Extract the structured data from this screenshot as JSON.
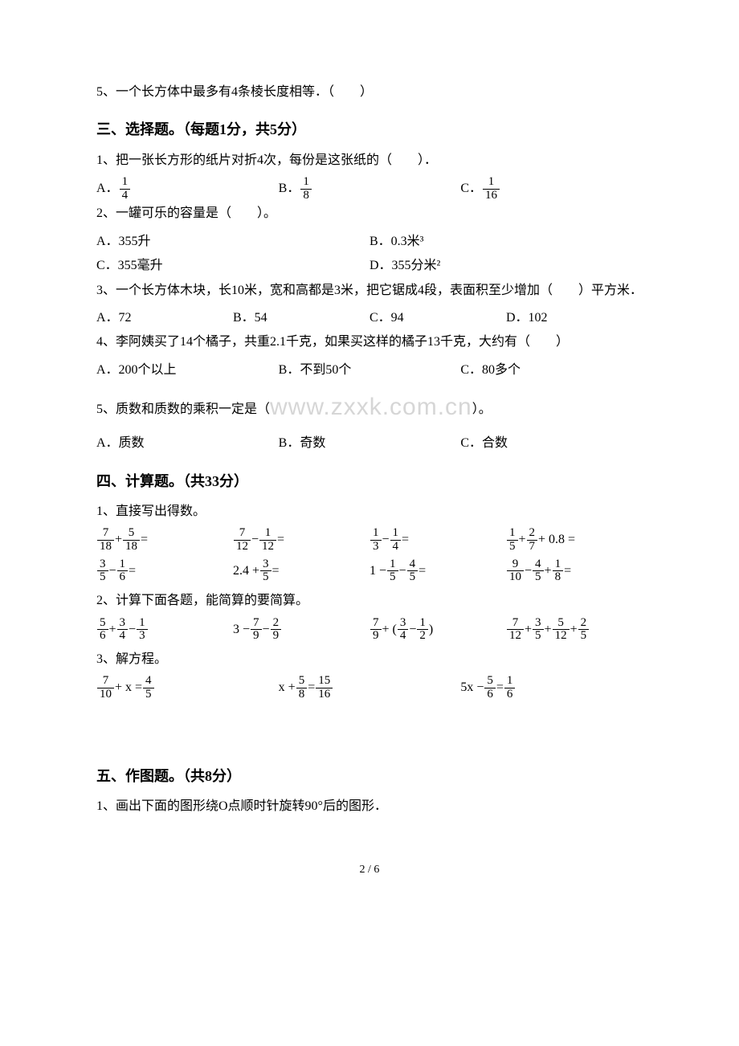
{
  "q2_5": "5、一个长方体中最多有4条棱长度相等．（　　）",
  "sec3_title": "三、选择题。（每题1分，共5分）",
  "s3q1": "1、把一张长方形的纸片对折4次，每份是这张纸的（　　）．",
  "s3q1a_pre": "A．",
  "s3q1a_n": "1",
  "s3q1a_d": "4",
  "s3q1b_pre": "B．",
  "s3q1b_n": "1",
  "s3q1b_d": "8",
  "s3q1c_pre": "C．",
  "s3q1c_n": "1",
  "s3q1c_d": "16",
  "s3q2": "2、一罐可乐的容量是（　　）。",
  "s3q2a": "A．355升",
  "s3q2b": "B．0.3米³",
  "s3q2c": "C．355毫升",
  "s3q2d": "D．355分米²",
  "s3q3": "3、一个长方体木块，长10米，宽和高都是3米，把它锯成4段，表面积至少增加（　　）平方米．",
  "s3q3a": "A．72",
  "s3q3b": "B．54",
  "s3q3c": "C．94",
  "s3q3d": "D．102",
  "s3q4": "4、李阿姨买了14个橘子，共重2.1千克，如果买这样的橘子13千克，大约有（　　）",
  "s3q4a": "A．200个以上",
  "s3q4b": "B．不到50个",
  "s3q4c": "C．80多个",
  "s3q5_pre": "5、质数和质数的乘积一定是（",
  "s3q5_wm": "www.zxxk.com.cn",
  "s3q5_post": "）。",
  "s3q5a": "A．质数",
  "s3q5b": "B．奇数",
  "s3q5c": "C．合数",
  "sec4_title": "四、计算题。（共33分）",
  "s4q1": "1、直接写出得数。",
  "c1a_n1": "7",
  "c1a_d1": "18",
  "c1a_op": "+",
  "c1a_n2": "5",
  "c1a_d2": "18",
  "c1a_eq": "=",
  "c1b_n1": "7",
  "c1b_d1": "12",
  "c1b_op": "−",
  "c1b_n2": "1",
  "c1b_d2": "12",
  "c1b_eq": "=",
  "c1c_n1": "1",
  "c1c_d1": "3",
  "c1c_op": "−",
  "c1c_n2": "1",
  "c1c_d2": "4",
  "c1c_eq": "=",
  "c1d_n1": "1",
  "c1d_d1": "5",
  "c1d_op1": "+",
  "c1d_n2": "2",
  "c1d_d2": "7",
  "c1d_op2": "+ 0.8 =",
  "c2a_n1": "3",
  "c2a_d1": "5",
  "c2a_op": "−",
  "c2a_n2": "1",
  "c2a_d2": "6",
  "c2a_eq": "=",
  "c2b_pre": "2.4 +",
  "c2b_n": "3",
  "c2b_d": "5",
  "c2b_eq": "=",
  "c2c_pre": "1 −",
  "c2c_n1": "1",
  "c2c_d1": "5",
  "c2c_op": "−",
  "c2c_n2": "4",
  "c2c_d2": "5",
  "c2c_eq": "=",
  "c2d_n1": "9",
  "c2d_d1": "10",
  "c2d_op1": "−",
  "c2d_n2": "4",
  "c2d_d2": "5",
  "c2d_op2": "+",
  "c2d_n3": "1",
  "c2d_d3": "8",
  "c2d_eq": "=",
  "s4q2": "2、计算下面各题，能简算的要简算。",
  "r1a_n1": "5",
  "r1a_d1": "6",
  "r1a_op1": "+",
  "r1a_n2": "3",
  "r1a_d2": "4",
  "r1a_op2": "−",
  "r1a_n3": "1",
  "r1a_d3": "3",
  "r1b_pre": "3 −",
  "r1b_n1": "7",
  "r1b_d1": "9",
  "r1b_op": "−",
  "r1b_n2": "2",
  "r1b_d2": "9",
  "r1c_n1": "7",
  "r1c_d1": "9",
  "r1c_op1": "+ (",
  "r1c_n2": "3",
  "r1c_d2": "4",
  "r1c_op2": "−",
  "r1c_n3": "1",
  "r1c_d3": "2",
  "r1c_op3": ")",
  "r1d_n1": "7",
  "r1d_d1": "12",
  "r1d_op1": "+",
  "r1d_n2": "3",
  "r1d_d2": "5",
  "r1d_op2": "+",
  "r1d_n3": "5",
  "r1d_d3": "12",
  "r1d_op3": "+",
  "r1d_n4": "2",
  "r1d_d4": "5",
  "s4q3": "3、解方程。",
  "e1_n1": "7",
  "e1_d1": "10",
  "e1_mid": "+ x =",
  "e1_n2": "4",
  "e1_d2": "5",
  "e2_pre": "x +",
  "e2_n1": "5",
  "e2_d1": "8",
  "e2_mid": "=",
  "e2_n2": "15",
  "e2_d2": "16",
  "e3_pre": "5x −",
  "e3_n1": "5",
  "e3_d1": "6",
  "e3_mid": "=",
  "e3_n2": "1",
  "e3_d2": "6",
  "sec5_title": "五、作图题。（共8分）",
  "s5q1": "1、画出下面的图形绕O点顺时针旋转90°后的图形．",
  "pagenum": "2 / 6"
}
